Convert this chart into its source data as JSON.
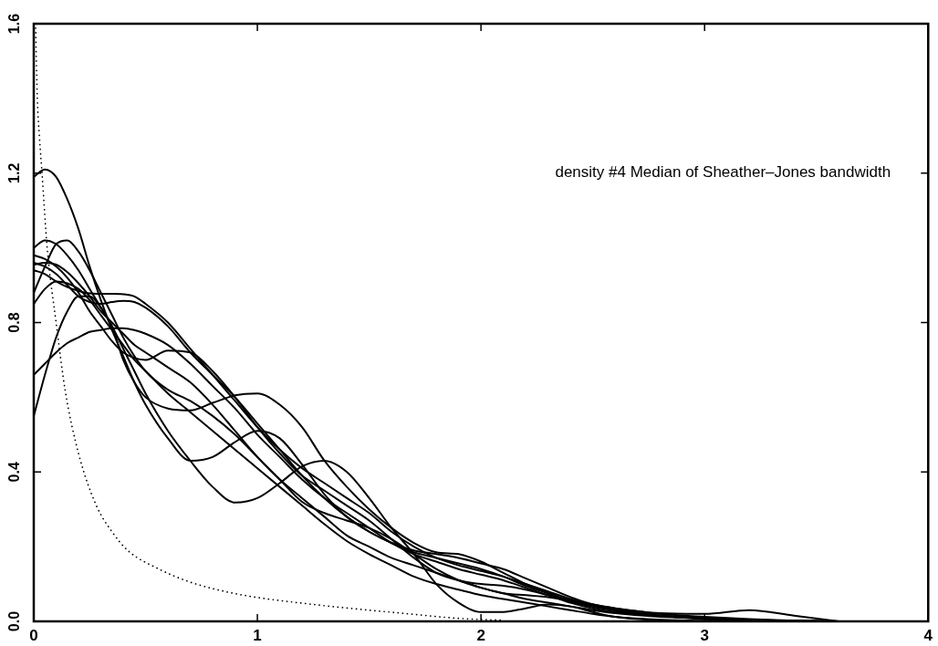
{
  "chart_data": {
    "type": "line",
    "title": "density #4 Median of Sheather–Jones bandwidth",
    "x": [
      0,
      0.05,
      0.1,
      0.15,
      0.2,
      0.25,
      0.3,
      0.35,
      0.4,
      0.45,
      0.5,
      0.6,
      0.7,
      0.8,
      0.9,
      1.0,
      1.1,
      1.2,
      1.3,
      1.4,
      1.5,
      1.6,
      1.7,
      1.8,
      1.9,
      2.0,
      2.1,
      2.2,
      2.3,
      2.4,
      2.5,
      2.6,
      2.8,
      3.0,
      3.2,
      3.4,
      3.6
    ],
    "series": [
      {
        "color": "#000000",
        "values": [
          1.19,
          1.21,
          1.19,
          1.13,
          1.05,
          0.95,
          0.86,
          0.78,
          0.71,
          0.64,
          0.58,
          0.49,
          0.43,
          0.44,
          0.48,
          0.51,
          0.49,
          0.42,
          0.34,
          0.28,
          0.24,
          0.21,
          0.185,
          0.17,
          0.155,
          0.14,
          0.12,
          0.095,
          0.075,
          0.055,
          0.04,
          0.03,
          0.015,
          0.006,
          0.002,
          0,
          0
        ]
      },
      {
        "color": "#000000",
        "values": [
          1.0,
          1.02,
          1.01,
          0.98,
          0.94,
          0.89,
          0.84,
          0.79,
          0.7,
          0.64,
          0.6,
          0.57,
          0.565,
          0.585,
          0.605,
          0.61,
          0.58,
          0.52,
          0.43,
          0.36,
          0.3,
          0.25,
          0.21,
          0.185,
          0.18,
          0.16,
          0.13,
          0.1,
          0.075,
          0.055,
          0.04,
          0.03,
          0.015,
          0.007,
          0.002,
          0,
          0
        ]
      },
      {
        "color": "#000000",
        "values": [
          0.88,
          0.95,
          1.01,
          1.02,
          0.99,
          0.94,
          0.88,
          0.82,
          0.76,
          0.71,
          0.67,
          0.62,
          0.59,
          0.55,
          0.5,
          0.44,
          0.38,
          0.32,
          0.29,
          0.27,
          0.25,
          0.22,
          0.18,
          0.14,
          0.11,
          0.09,
          0.075,
          0.07,
          0.065,
          0.055,
          0.04,
          0.03,
          0.015,
          0.008,
          0.003,
          0.001,
          0
        ]
      },
      {
        "color": "#000000",
        "values": [
          0.55,
          0.66,
          0.76,
          0.83,
          0.87,
          0.87,
          0.84,
          0.79,
          0.73,
          0.67,
          0.61,
          0.51,
          0.43,
          0.36,
          0.318,
          0.33,
          0.37,
          0.415,
          0.43,
          0.4,
          0.33,
          0.25,
          0.18,
          0.1,
          0.05,
          0.025,
          0.025,
          0.035,
          0.045,
          0.04,
          0.025,
          0.012,
          0.003,
          0.001,
          0,
          0,
          0
        ]
      },
      {
        "color": "#000000",
        "values": [
          0.66,
          0.69,
          0.72,
          0.745,
          0.76,
          0.775,
          0.78,
          0.785,
          0.785,
          0.78,
          0.77,
          0.74,
          0.69,
          0.63,
          0.57,
          0.5,
          0.44,
          0.38,
          0.33,
          0.29,
          0.25,
          0.21,
          0.18,
          0.16,
          0.14,
          0.125,
          0.11,
          0.09,
          0.07,
          0.055,
          0.045,
          0.035,
          0.02,
          0.012,
          0.006,
          0.002,
          0
        ]
      },
      {
        "color": "#000000",
        "values": [
          0.94,
          0.93,
          0.91,
          0.895,
          0.885,
          0.878,
          0.877,
          0.877,
          0.876,
          0.87,
          0.85,
          0.8,
          0.73,
          0.66,
          0.59,
          0.52,
          0.46,
          0.41,
          0.37,
          0.33,
          0.29,
          0.24,
          0.2,
          0.17,
          0.15,
          0.135,
          0.12,
          0.1,
          0.08,
          0.06,
          0.045,
          0.035,
          0.022,
          0.02,
          0.03,
          0.015,
          0
        ]
      },
      {
        "color": "#000000",
        "values": [
          0.96,
          0.95,
          0.93,
          0.9,
          0.87,
          0.855,
          0.85,
          0.855,
          0.858,
          0.855,
          0.84,
          0.79,
          0.72,
          0.66,
          0.6,
          0.53,
          0.46,
          0.39,
          0.33,
          0.28,
          0.24,
          0.21,
          0.19,
          0.18,
          0.17,
          0.155,
          0.14,
          0.115,
          0.09,
          0.065,
          0.045,
          0.03,
          0.015,
          0.008,
          0.003,
          0.001,
          0
        ]
      },
      {
        "color": "#000000",
        "values": [
          0.98,
          0.97,
          0.95,
          0.92,
          0.88,
          0.83,
          0.79,
          0.75,
          0.72,
          0.705,
          0.7,
          0.725,
          0.72,
          0.67,
          0.6,
          0.52,
          0.45,
          0.39,
          0.35,
          0.31,
          0.27,
          0.22,
          0.17,
          0.13,
          0.11,
          0.1,
          0.095,
          0.085,
          0.07,
          0.05,
          0.035,
          0.025,
          0.015,
          0.01,
          0.004,
          0.001,
          0
        ]
      },
      {
        "color": "#000000",
        "values": [
          0.955,
          0.96,
          0.955,
          0.935,
          0.905,
          0.87,
          0.83,
          0.8,
          0.77,
          0.74,
          0.72,
          0.68,
          0.64,
          0.58,
          0.51,
          0.44,
          0.38,
          0.33,
          0.28,
          0.23,
          0.2,
          0.17,
          0.15,
          0.13,
          0.11,
          0.09,
          0.075,
          0.06,
          0.05,
          0.04,
          0.03,
          0.022,
          0.012,
          0.008,
          0.004,
          0.001,
          0
        ]
      },
      {
        "color": "#000000",
        "values": [
          0.85,
          0.89,
          0.91,
          0.905,
          0.89,
          0.86,
          0.82,
          0.78,
          0.74,
          0.7,
          0.67,
          0.61,
          0.56,
          0.51,
          0.46,
          0.41,
          0.36,
          0.31,
          0.26,
          0.215,
          0.18,
          0.15,
          0.12,
          0.1,
          0.085,
          0.07,
          0.06,
          0.05,
          0.04,
          0.03,
          0.02,
          0.012,
          0.004,
          0.001,
          0,
          0,
          0
        ]
      },
      {
        "color": "#000000",
        "line_style": "dotted",
        "x": [
          0.008,
          0.016,
          0.025,
          0.037,
          0.06,
          0.1,
          0.14,
          0.2,
          0.28,
          0.35,
          0.42,
          0.56,
          0.7,
          0.87,
          1.0,
          1.27,
          1.5,
          1.68,
          1.9,
          2.1
        ],
        "values": [
          1.6,
          1.4,
          1.3,
          1.2,
          1.0,
          0.8,
          0.62,
          0.45,
          0.31,
          0.24,
          0.19,
          0.14,
          0.105,
          0.078,
          0.064,
          0.044,
          0.03,
          0.02,
          0.008,
          0.003
        ]
      }
    ],
    "xlim": [
      0,
      4
    ],
    "ylim": [
      0,
      1.6
    ],
    "xticks": [
      0,
      1,
      2,
      3,
      4
    ],
    "yticks": [
      {
        "value": 0,
        "label": "0.0"
      },
      0.4,
      0.8,
      1.2,
      1.6
    ],
    "marker": "none",
    "line_style": "solid"
  }
}
